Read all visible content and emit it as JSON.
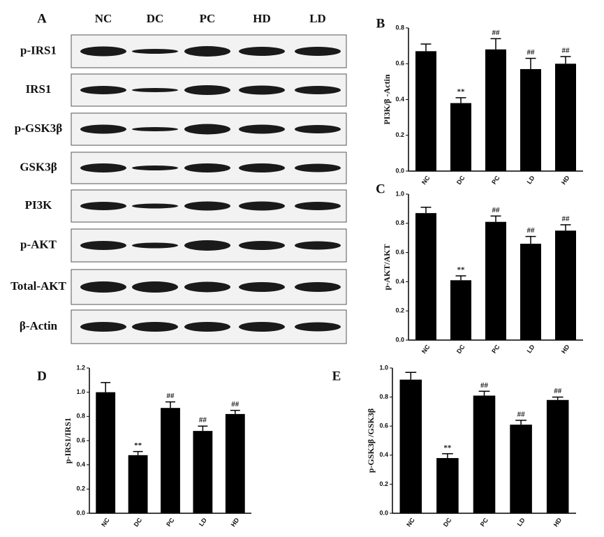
{
  "blot": {
    "panel_label": "A",
    "lanes": [
      "NC",
      "DC",
      "PC",
      "HD",
      "LD"
    ],
    "rows": [
      "p-IRS1",
      "IRS1",
      "p-GSK3β",
      "GSK3β",
      "PI3K",
      "p-AKT",
      "Total-AKT",
      "β-Actin"
    ]
  },
  "chart_data": [
    {
      "type": "bar",
      "panel_label": "B",
      "y_label": "PI3K/β -Actin",
      "categories": [
        "NC",
        "DC",
        "PC",
        "LD",
        "HD"
      ],
      "values": [
        0.67,
        0.38,
        0.68,
        0.57,
        0.6
      ],
      "errors": [
        0.04,
        0.03,
        0.06,
        0.06,
        0.04
      ],
      "value_annotations": [
        null,
        "**",
        "##",
        "##",
        "##"
      ],
      "color": "#000000",
      "ylim": [
        0,
        0.8
      ],
      "yticks": [
        {
          "value": 0,
          "label": "0.0"
        },
        0.2,
        0.4,
        0.6,
        0.8
      ]
    },
    {
      "type": "bar",
      "panel_label": "C",
      "y_label": "p-AKT/AKT",
      "categories": [
        "NC",
        "DC",
        "PC",
        "LD",
        "HD"
      ],
      "values": [
        0.87,
        0.41,
        0.81,
        0.66,
        0.75
      ],
      "errors": [
        0.04,
        0.03,
        0.04,
        0.05,
        0.04
      ],
      "value_annotations": [
        null,
        "**",
        "##",
        "##",
        "##"
      ],
      "color": "#000000",
      "ylim": [
        0,
        1
      ],
      "yticks": [
        {
          "value": 0,
          "label": "0.0"
        },
        0.2,
        0.4,
        0.6,
        0.8,
        {
          "value": 1,
          "label": "1.0"
        }
      ]
    },
    {
      "type": "bar",
      "panel_label": "D",
      "y_label": "p-IRS1/IRS1",
      "categories": [
        "NC",
        "DC",
        "PC",
        "LD",
        "HD"
      ],
      "values": [
        1.0,
        0.48,
        0.87,
        0.68,
        0.82
      ],
      "errors": [
        0.08,
        0.03,
        0.05,
        0.04,
        0.03
      ],
      "value_annotations": [
        null,
        "**",
        "##",
        "##",
        "##"
      ],
      "color": "#000000",
      "ylim": [
        0,
        1.2
      ],
      "yticks": [
        {
          "value": 0,
          "label": "0.0"
        },
        0.2,
        0.4,
        0.6,
        0.8,
        {
          "value": 1,
          "label": "1.0"
        },
        1.2
      ]
    },
    {
      "type": "bar",
      "panel_label": "E",
      "y_label": "p-GSK3β /GSK3β",
      "categories": [
        "NC",
        "DC",
        "PC",
        "LD",
        "HD"
      ],
      "values": [
        0.92,
        0.38,
        0.81,
        0.61,
        0.78
      ],
      "errors": [
        0.05,
        0.03,
        0.03,
        0.03,
        0.02
      ],
      "value_annotations": [
        null,
        "**",
        "##",
        "##",
        "##"
      ],
      "color": "#000000",
      "ylim": [
        0,
        1
      ],
      "yticks": [
        {
          "value": 0,
          "label": "0.0"
        },
        0.2,
        0.4,
        0.6,
        0.8,
        {
          "value": 1,
          "label": "1.0"
        }
      ]
    }
  ]
}
